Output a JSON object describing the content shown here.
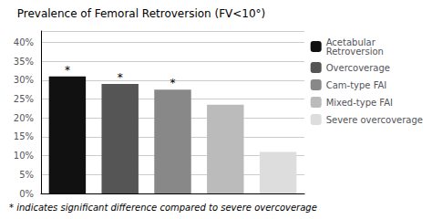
{
  "chart_data": {
    "type": "bar",
    "title": "Prevalence of Femoral Retroversion (FV<10°)",
    "footnote": "* indicates significant difference compared to severe overcoverage",
    "categories": [
      "Acetabular\nRetroversion",
      "Overcoverage",
      "Cam-type FAI",
      "Mixed-type FAI",
      "Severe overcoverage"
    ],
    "values": [
      0.31,
      0.29,
      0.275,
      0.235,
      0.11
    ],
    "colors": [
      "#111111",
      "#555555",
      "#888888",
      "#bbbbbb",
      "#dddddd"
    ],
    "annotations": [
      {
        "text": "*",
        "category": "Acetabular\nRetroversion"
      },
      {
        "text": "*",
        "category": "Overcoverage"
      },
      {
        "text": "*",
        "category": "Cam-type FAI"
      }
    ],
    "ylim": [
      0,
      0.43
    ],
    "yticks": [
      {
        "value": 0.0,
        "label": "0%"
      },
      {
        "value": 0.05,
        "label": "5%"
      },
      {
        "value": 0.1,
        "label": "10%"
      },
      {
        "value": 0.15,
        "label": "15%"
      },
      {
        "value": 0.2,
        "label": "20%"
      },
      {
        "value": 0.25,
        "label": "25%"
      },
      {
        "value": 0.3,
        "label": "30%"
      },
      {
        "value": 0.35,
        "label": "35%"
      },
      {
        "value": 0.4,
        "label": "40%"
      }
    ],
    "grid": true,
    "legend": "right",
    "tick_labels": "y"
  }
}
